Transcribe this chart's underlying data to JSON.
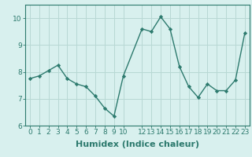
{
  "x": [
    0,
    1,
    2,
    3,
    4,
    5,
    6,
    7,
    8,
    9,
    10,
    12,
    13,
    14,
    15,
    16,
    17,
    18,
    19,
    20,
    21,
    22,
    23
  ],
  "y": [
    7.75,
    7.85,
    8.05,
    8.25,
    7.75,
    7.55,
    7.45,
    7.1,
    6.65,
    6.35,
    7.85,
    9.6,
    9.5,
    10.05,
    9.6,
    8.2,
    7.45,
    7.05,
    7.55,
    7.3,
    7.3,
    7.7,
    9.45
  ],
  "line_color": "#2d7a6e",
  "marker": "D",
  "marker_size": 2.2,
  "bg_color": "#d8f0ee",
  "grid_color": "#b8d8d4",
  "xlabel": "Humidex (Indice chaleur)",
  "ylim": [
    6,
    10.5
  ],
  "xlim": [
    -0.5,
    23.5
  ],
  "yticks": [
    6,
    7,
    8,
    9,
    10
  ],
  "xticks": [
    0,
    1,
    2,
    3,
    4,
    5,
    6,
    7,
    8,
    9,
    10,
    12,
    13,
    14,
    15,
    16,
    17,
    18,
    19,
    20,
    21,
    22,
    23
  ],
  "xtick_labels": [
    "0",
    "1",
    "2",
    "3",
    "4",
    "5",
    "6",
    "7",
    "8",
    "9",
    "10",
    "12",
    "13",
    "14",
    "15",
    "16",
    "17",
    "18",
    "19",
    "20",
    "21",
    "22",
    "23"
  ],
  "xlabel_fontsize": 8,
  "tick_fontsize": 6.5,
  "line_width": 1.0
}
